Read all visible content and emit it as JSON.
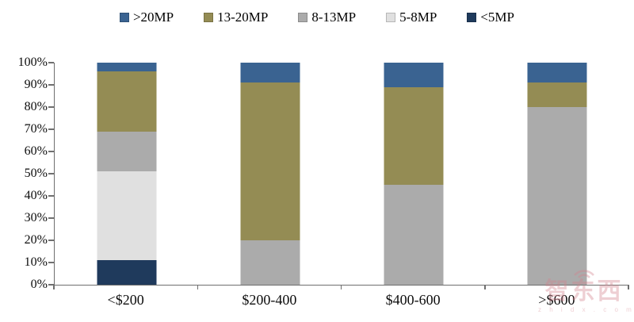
{
  "chart_data": {
    "type": "bar",
    "subtype": "stacked-100-percent",
    "categories": [
      "<$200",
      "$200-400",
      "$400-600",
      ">$600"
    ],
    "series": [
      {
        "name": "<5MP",
        "color": "#1F3A5C",
        "values": [
          11,
          0,
          0,
          0
        ]
      },
      {
        "name": "5-8MP",
        "color": "#E0E0E0",
        "values": [
          40,
          0,
          0,
          0
        ]
      },
      {
        "name": "8-13MP",
        "color": "#ABABAB",
        "values": [
          18,
          20,
          45,
          80
        ]
      },
      {
        "name": "13-20MP",
        "color": "#948C54",
        "values": [
          27,
          71,
          44,
          11
        ]
      },
      {
        "name": ">20MP",
        "color": "#3A6391",
        "values": [
          4,
          9,
          11,
          9
        ]
      }
    ],
    "series_order_note": "series listed bottom-to-top of each stacked column",
    "legend_entries": [
      ">20MP",
      "13-20MP",
      "8-13MP",
      "5-8MP",
      "<5MP"
    ],
    "legend_position": "top-center",
    "y_axis": {
      "ticks": [
        "0%",
        "10%",
        "20%",
        "30%",
        "40%",
        "50%",
        "60%",
        "70%",
        "80%",
        "90%",
        "100%"
      ],
      "range": [
        0,
        100
      ],
      "grid": "off"
    },
    "x_axis": {
      "tick_marks": "between-categories"
    },
    "axis_color": "#6F6F6F",
    "title": "",
    "xlabel": "",
    "ylabel": ""
  },
  "watermark": {
    "text": "智东西",
    "subtext": "z h i d x . c o m",
    "icon": "wifi-signal-icon",
    "color": "#D4838D"
  }
}
